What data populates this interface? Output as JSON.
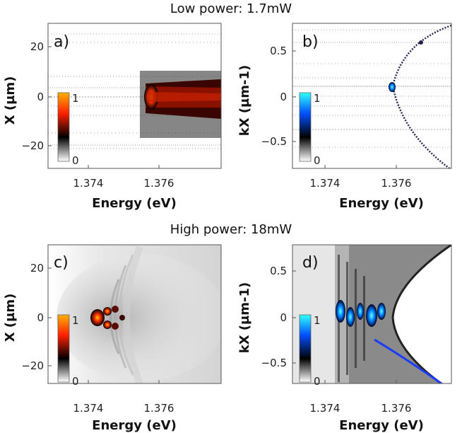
{
  "figure": {
    "top_title": "Low power: 1.7mW",
    "bottom_title": "High power: 18mW"
  },
  "panels": [
    {
      "id": "a",
      "label": "a)",
      "xlabel": "Energy (eV)",
      "ylabel": "X (µm)",
      "yticks": [
        "20",
        "0",
        "−20"
      ],
      "xticks": [
        "1.374",
        "1.376"
      ],
      "colorbar": {
        "max": "1",
        "min": "0",
        "colormap": "black-red-orange"
      }
    },
    {
      "id": "b",
      "label": "b)",
      "xlabel": "Energy (eV)",
      "ylabel": "kX (µm-1)",
      "yticks": [
        "0.5",
        "0",
        "−0.5"
      ],
      "xticks": [
        "1.374",
        "1.376"
      ],
      "colorbar": {
        "max": "1",
        "min": "0",
        "colormap": "black-blue-cyan"
      }
    },
    {
      "id": "c",
      "label": "c)",
      "xlabel": "Energy (eV)",
      "ylabel": "X (µm)",
      "yticks": [
        "20",
        "0",
        "−20"
      ],
      "xticks": [
        "1.374",
        "1.376"
      ],
      "colorbar": {
        "max": "1",
        "min": "0",
        "colormap": "black-red-orange"
      }
    },
    {
      "id": "d",
      "label": "d)",
      "xlabel": "Energy (eV)",
      "ylabel": "kX (µm-1)",
      "yticks": [
        "0.5",
        "0",
        "−0.5"
      ],
      "xticks": [
        "1.374",
        "1.376"
      ],
      "colorbar": {
        "max": "1",
        "min": "0",
        "colormap": "black-blue-cyan"
      }
    }
  ],
  "colors": {
    "red_map": [
      "#ffffff",
      "#000000",
      "#ff2200",
      "#ffcc00"
    ],
    "blue_map": [
      "#ffffff",
      "#000000",
      "#0044ff",
      "#33ffff"
    ]
  }
}
